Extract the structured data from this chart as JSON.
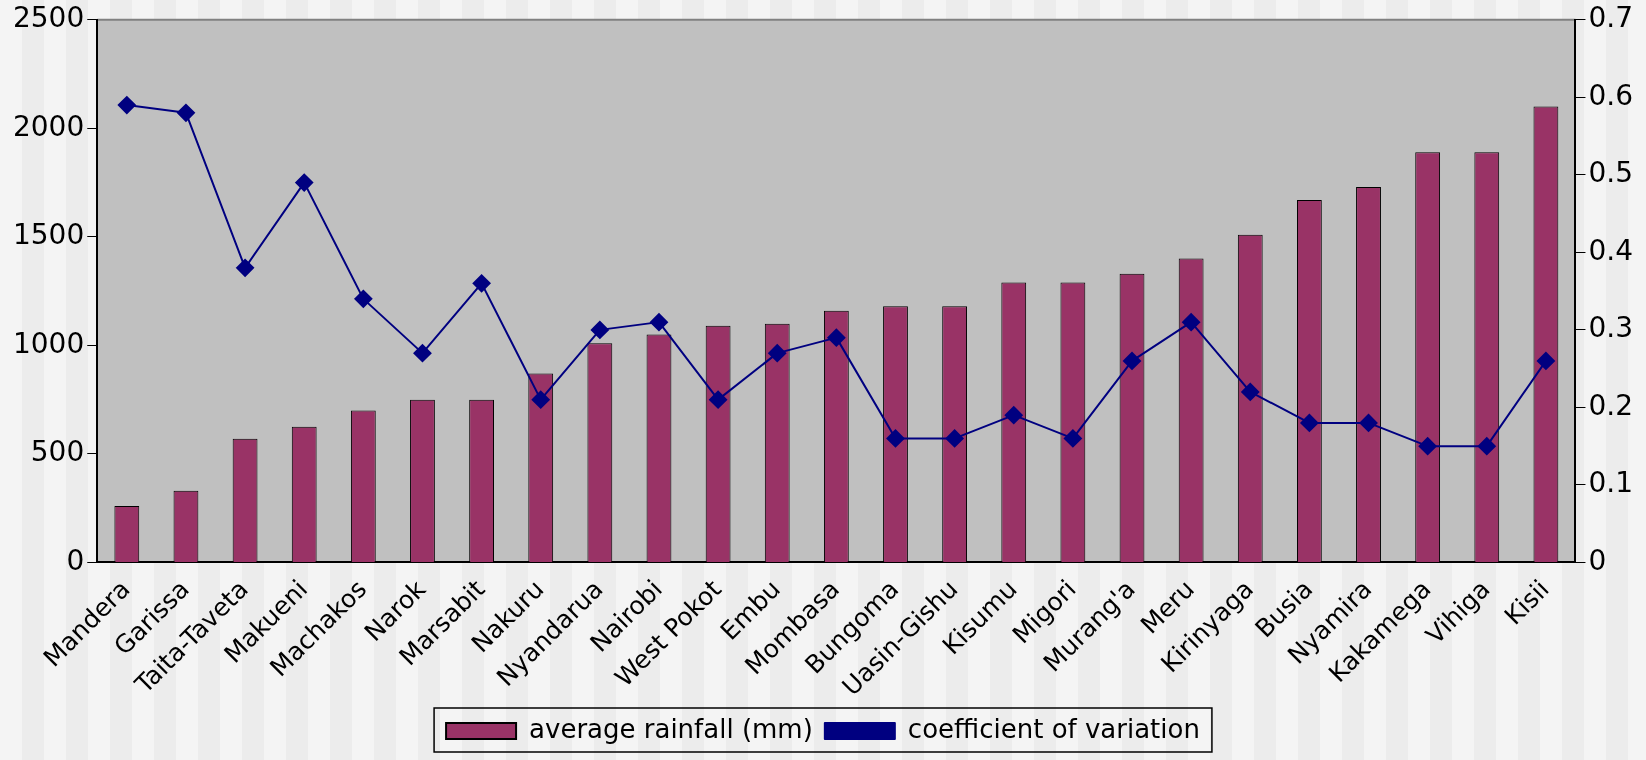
{
  "chart_data": {
    "type": "bar",
    "categories": [
      "Mandera",
      "Garissa",
      "Taita-Taveta",
      "Makueni",
      "Machakos",
      "Narok",
      "Marsabit",
      "Nakuru",
      "Nyandarua",
      "Nairobi",
      "West Pokot",
      "Embu",
      "Mombasa",
      "Bungoma",
      "Uasin-Gishu",
      "Kisumu",
      "Migori",
      "Murang'a",
      "Meru",
      "Kirinyaga",
      "Busia",
      "Nyamira",
      "Kakamega",
      "Vihiga",
      "Kisii"
    ],
    "series": [
      {
        "name": "average rainfall (mm)",
        "color": "#993366",
        "values": [
          260,
          330,
          570,
          625,
          700,
          750,
          750,
          870,
          1010,
          1050,
          1090,
          1100,
          1160,
          1180,
          1180,
          1290,
          1290,
          1330,
          1400,
          1510,
          1670,
          1730,
          1890,
          1890,
          2100
        ]
      },
      {
        "name": "coefficient of variation",
        "type": "line",
        "axis": "y2",
        "color": "#000080",
        "marker": "diamond",
        "values": [
          0.59,
          0.58,
          0.38,
          0.49,
          0.34,
          0.27,
          0.36,
          0.21,
          0.3,
          0.31,
          0.21,
          0.27,
          0.29,
          0.16,
          0.16,
          0.19,
          0.16,
          0.26,
          0.31,
          0.22,
          0.18,
          0.18,
          0.15,
          0.15,
          0.26
        ]
      }
    ],
    "ylim": [
      0,
      2500
    ],
    "yticks": [
      0,
      500,
      1000,
      1500,
      2000,
      2500
    ],
    "y2lim": [
      0,
      0.7
    ],
    "y2ticks": [
      0,
      0.1,
      0.2,
      0.3,
      0.4,
      0.5,
      0.6,
      0.7
    ],
    "grid": false,
    "legend": "bottom"
  }
}
